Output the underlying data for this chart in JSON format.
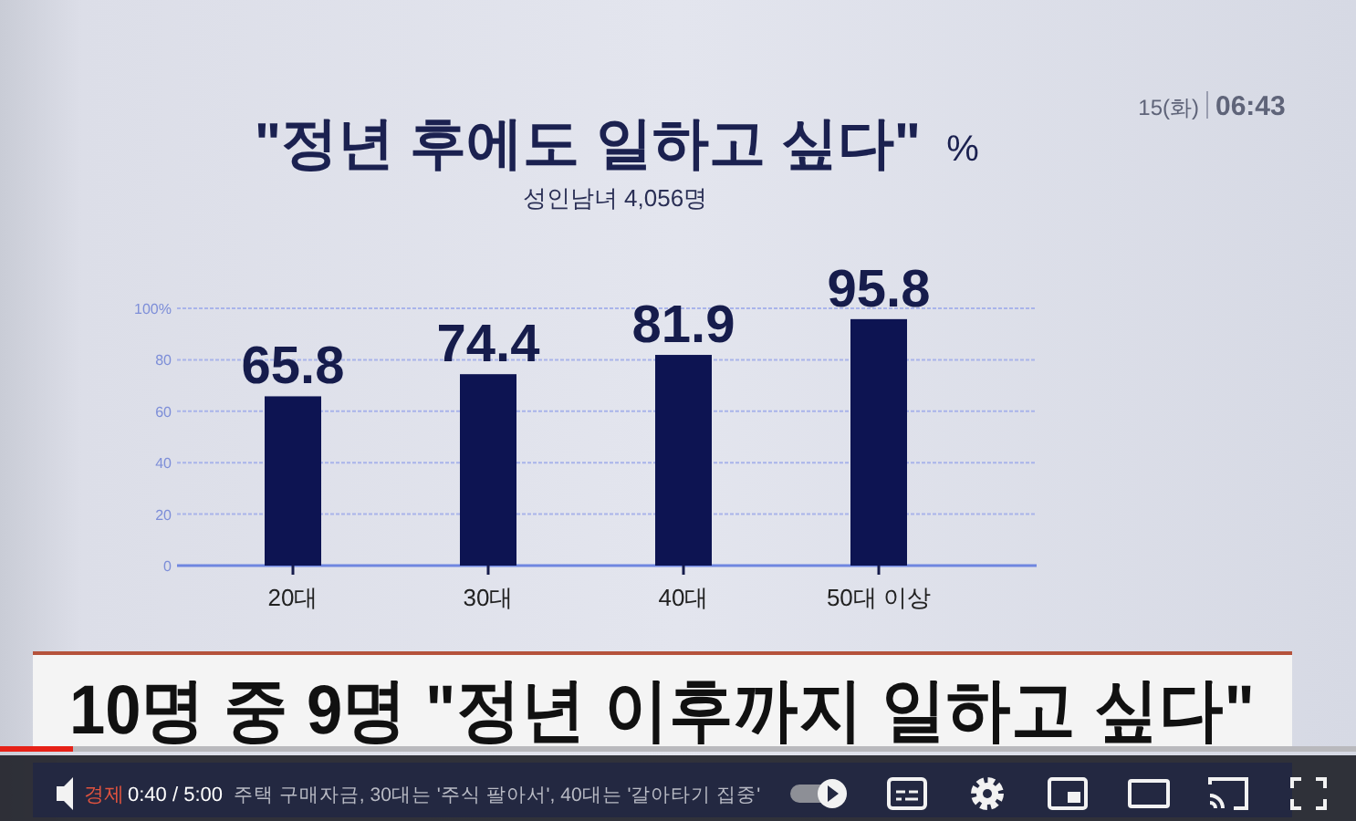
{
  "chart_data": {
    "type": "bar",
    "title": "\"정년 후에도 일하고 싶다\"",
    "ylabel": "%",
    "subtitle": "성인남녀 4,056명",
    "categories": [
      "20대",
      "30대",
      "40대",
      "50대 이상"
    ],
    "values": [
      65.8,
      74.4,
      81.9,
      95.8
    ],
    "color": "#0d1452",
    "data_labels": true,
    "ylim": [
      0,
      100
    ],
    "yticks": [
      0,
      20,
      40,
      60,
      80,
      {
        "value": 100,
        "label": "100%"
      }
    ],
    "grid": "y",
    "annotations": [
      "10명 중 9명 \"정년 이후까지 일하고 싶다\"",
      "15(화)",
      "06:43",
      "경제",
      "0:40 / 5:00",
      "주택 구매자금, 30대는 '주식 팔아서', 40대는 '갈아타기 집중'"
    ]
  }
}
